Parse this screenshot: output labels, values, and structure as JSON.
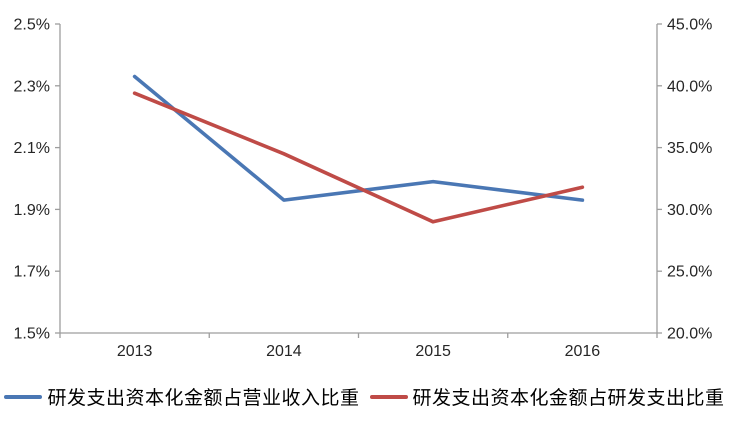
{
  "chart_data": {
    "type": "line",
    "title": "",
    "categories": [
      "2013",
      "2014",
      "2015",
      "2016"
    ],
    "series": [
      {
        "name": "研发支出资本化金额占营业收入比重",
        "axis": "left",
        "color": "#4a77b4",
        "values": [
          2.33,
          1.93,
          1.99,
          1.93
        ]
      },
      {
        "name": "研发支出资本化金额占研发支出比重",
        "axis": "right",
        "color": "#bf4b47",
        "values": [
          39.4,
          34.5,
          29.0,
          31.8
        ]
      }
    ],
    "left_axis": {
      "min": 1.5,
      "max": 2.5,
      "tick_values": [
        2.5,
        2.3,
        2.1,
        1.9,
        1.7,
        1.5
      ],
      "tick_labels": [
        "2.5%",
        "2.3%",
        "2.1%",
        "1.9%",
        "1.7%",
        "1.5%"
      ]
    },
    "right_axis": {
      "min": 20.0,
      "max": 45.0,
      "tick_values": [
        45,
        40,
        35,
        30,
        25,
        20
      ],
      "tick_labels": [
        "45.0%",
        "40.0%",
        "35.0%",
        "30.0%",
        "25.0%",
        "20.0%"
      ]
    },
    "grid": false,
    "legend_position": "bottom",
    "axis_color": "#9d9d9d",
    "text_color": "#262626"
  }
}
